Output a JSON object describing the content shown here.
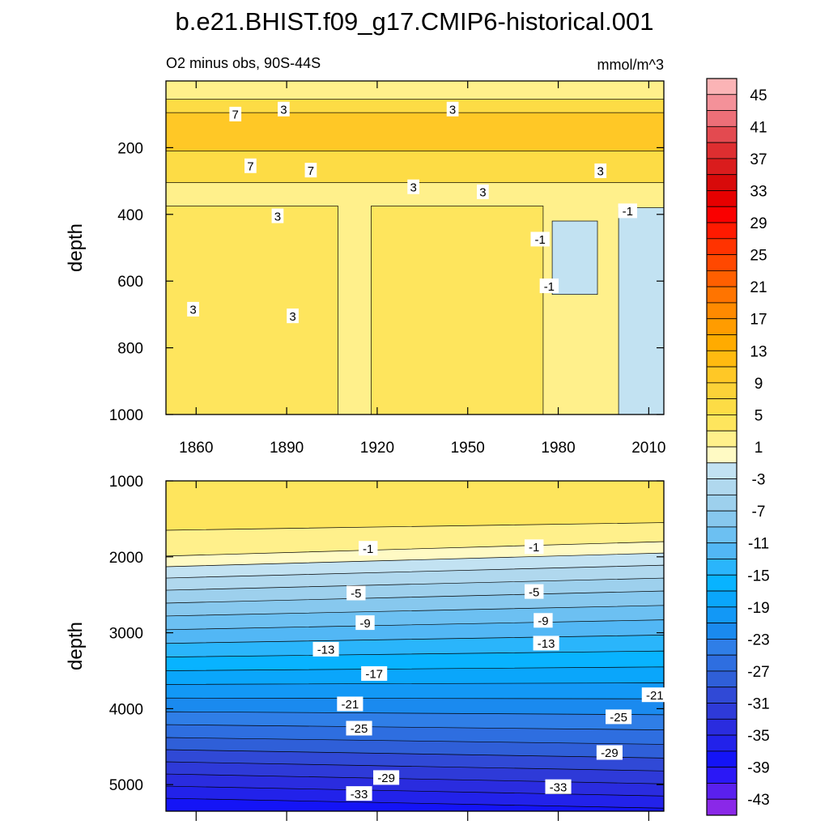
{
  "title": "b.e21.BHIST.f09_g17.CMIP6-historical.001",
  "chart_data": [
    {
      "type": "heatmap",
      "panel": "upper",
      "subtitle_left": "O2 minus obs, 90S-44S",
      "subtitle_right": "mmol/m^3",
      "xlabel": "",
      "ylabel": "depth",
      "xlim": [
        1850,
        2015
      ],
      "ylim": [
        1000,
        0
      ],
      "x_ticks": [
        "1860",
        "1890",
        "1920",
        "1950",
        "1980",
        "2010"
      ],
      "x_tick_values": [
        1860,
        1890,
        1920,
        1950,
        1980,
        2010
      ],
      "y_ticks": [
        "200",
        "400",
        "600",
        "800",
        "1000"
      ],
      "y_tick_values": [
        200,
        400,
        600,
        800,
        1000
      ],
      "contour_labels": [
        {
          "text": "7",
          "x": 1873,
          "y": 100
        },
        {
          "text": "3",
          "x": 1889,
          "y": 85
        },
        {
          "text": "3",
          "x": 1945,
          "y": 85
        },
        {
          "text": "7",
          "x": 1878,
          "y": 255
        },
        {
          "text": "7",
          "x": 1898,
          "y": 268
        },
        {
          "text": "3",
          "x": 1932,
          "y": 318
        },
        {
          "text": "3",
          "x": 1955,
          "y": 333
        },
        {
          "text": "3",
          "x": 1994,
          "y": 270
        },
        {
          "text": "3",
          "x": 1887,
          "y": 405
        },
        {
          "text": "-1",
          "x": 2003,
          "y": 390
        },
        {
          "text": "-1",
          "x": 1974,
          "y": 475
        },
        {
          "text": "-1",
          "x": 1977,
          "y": 615
        },
        {
          "text": "3",
          "x": 1859,
          "y": 685
        },
        {
          "text": "3",
          "x": 1892,
          "y": 705
        }
      ],
      "regions": [
        {
          "level": 1,
          "x": [
            1850,
            2015
          ],
          "y": [
            0,
            1000
          ]
        },
        {
          "level": 5,
          "x": [
            1850,
            2015
          ],
          "y": [
            55,
            305
          ]
        },
        {
          "level": 9,
          "x": [
            1850,
            2015
          ],
          "y": [
            95,
            210
          ]
        },
        {
          "level": 3,
          "x": [
            1850,
            1907
          ],
          "y": [
            375,
            1000
          ]
        },
        {
          "level": 3,
          "x": [
            1918,
            1975
          ],
          "y": [
            375,
            1000
          ]
        },
        {
          "level": -3,
          "x": [
            1978,
            1993
          ],
          "y": [
            420,
            640
          ]
        },
        {
          "level": -3,
          "x": [
            2000,
            2015
          ],
          "y": [
            380,
            1000
          ]
        }
      ]
    },
    {
      "type": "heatmap",
      "panel": "lower",
      "xlabel": "",
      "ylabel": "depth",
      "xlim": [
        1850,
        2015
      ],
      "ylim": [
        5350,
        1000
      ],
      "y_ticks": [
        "1000",
        "2000",
        "3000",
        "4000",
        "5000"
      ],
      "y_tick_values": [
        1000,
        2000,
        3000,
        4000,
        5000
      ],
      "contour_depths_start": [
        1650,
        1990,
        2130,
        2280,
        2440,
        2610,
        2780,
        2960,
        3140,
        3320,
        3500,
        3680,
        3860,
        4040,
        4210,
        4380,
        4540,
        4700,
        4860,
        5020,
        5180
      ],
      "contour_depths_end": [
        1550,
        1800,
        1950,
        2110,
        2280,
        2450,
        2640,
        2830,
        3030,
        3240,
        3450,
        3660,
        3870,
        4080,
        4280,
        4470,
        4650,
        4820,
        4990,
        5150,
        5310
      ],
      "contour_labels": [
        {
          "text": "-1",
          "x": 1917,
          "y": 1890
        },
        {
          "text": "-1",
          "x": 1972,
          "y": 1870
        },
        {
          "text": "-5",
          "x": 1913,
          "y": 2480
        },
        {
          "text": "-5",
          "x": 1972,
          "y": 2460
        },
        {
          "text": "-9",
          "x": 1916,
          "y": 2870
        },
        {
          "text": "-9",
          "x": 1975,
          "y": 2840
        },
        {
          "text": "-13",
          "x": 1903,
          "y": 3220
        },
        {
          "text": "-13",
          "x": 1976,
          "y": 3140
        },
        {
          "text": "-17",
          "x": 1919,
          "y": 3540
        },
        {
          "text": "-21",
          "x": 1911,
          "y": 3940
        },
        {
          "text": "-21",
          "x": 2012,
          "y": 3820
        },
        {
          "text": "-25",
          "x": 1914,
          "y": 4260
        },
        {
          "text": "-25",
          "x": 2000,
          "y": 4110
        },
        {
          "text": "-29",
          "x": 1923,
          "y": 4910
        },
        {
          "text": "-29",
          "x": 1997,
          "y": 4580
        },
        {
          "text": "-33",
          "x": 1914,
          "y": 5120
        },
        {
          "text": "-33",
          "x": 1980,
          "y": 5030
        }
      ]
    }
  ],
  "colorbar": {
    "tick_labels": [
      "45",
      "41",
      "37",
      "33",
      "29",
      "25",
      "21",
      "17",
      "13",
      "9",
      "5",
      "1",
      "-3",
      "-7",
      "-11",
      "-15",
      "-19",
      "-23",
      "-27",
      "-31",
      "-35",
      "-39",
      "-43"
    ],
    "levels": [
      45,
      43,
      41,
      39,
      37,
      35,
      33,
      31,
      29,
      27,
      25,
      23,
      21,
      19,
      17,
      15,
      13,
      11,
      9,
      7,
      5,
      3,
      1,
      -1,
      -3,
      -5,
      -7,
      -9,
      -11,
      -13,
      -15,
      -17,
      -19,
      -21,
      -23,
      -25,
      -27,
      -29,
      -31,
      -33,
      -35,
      -37,
      -39,
      -41,
      -43,
      -45
    ],
    "colors": [
      "#fbb4b6",
      "#f49199",
      "#ed6f78",
      "#e34a50",
      "#de2e30",
      "#da1c1d",
      "#d80a0a",
      "#e60000",
      "#fa0000",
      "#ff1a00",
      "#ff3300",
      "#ff4800",
      "#ff5f00",
      "#ff7400",
      "#ff8a00",
      "#ff9c00",
      "#ffab00",
      "#ffba10",
      "#ffc826",
      "#fbd238",
      "#fddc45",
      "#fee55d",
      "#fff08b",
      "#fffac4",
      "#c2e2f2",
      "#b0d8ee",
      "#9dd0ed",
      "#87c8ee",
      "#6cc0f2",
      "#52b7f5",
      "#2ab5fb",
      "#08b3ff",
      "#0aa6fb",
      "#1298f6",
      "#1a8aef",
      "#2f7ee7",
      "#2e6ee0",
      "#2f5fd8",
      "#3049d6",
      "#2e3ad8",
      "#2a2cdf",
      "#2222ea",
      "#1414f6",
      "#2b18f6",
      "#5a20ee",
      "#8a28e8"
    ]
  }
}
